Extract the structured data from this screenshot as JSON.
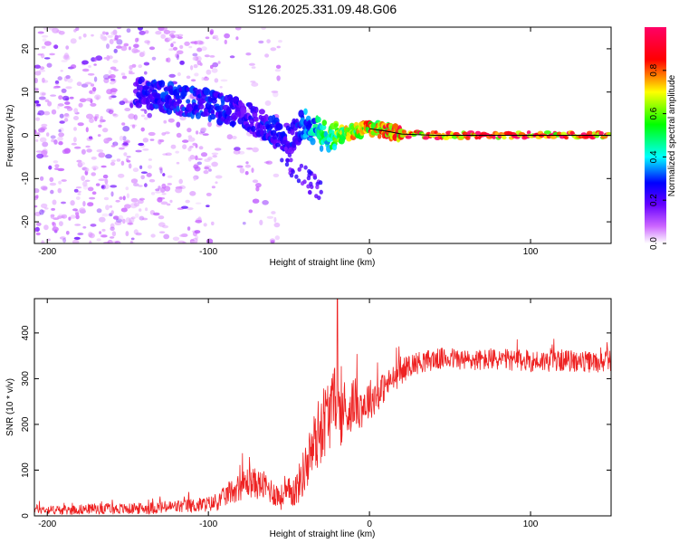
{
  "title": "S126.2025.331.09.48.G06",
  "colors": {
    "snr_line": "#ee2222",
    "ridge": "#000000",
    "colorbar": [
      "#ffffff",
      "#cc66ff",
      "#6600ff",
      "#0000ff",
      "#00ffff",
      "#00ff00",
      "#ffff00",
      "#ff0000",
      "#ff0066"
    ]
  },
  "chart_data": [
    {
      "type": "heatmap",
      "title": "S126.2025.331.09.48.G06",
      "xlabel": "Height of straight line (km)",
      "ylabel": "Frequency (Hz)",
      "xlim": [
        -208,
        150
      ],
      "ylim": [
        -25,
        25
      ],
      "xticks": [
        -200,
        -100,
        0,
        100
      ],
      "xtick_labels": [
        "-200",
        "-100",
        "0",
        "100"
      ],
      "yticks": [
        -20,
        -10,
        0,
        10,
        20
      ],
      "ytick_labels": [
        "-20",
        "-10",
        "0",
        "10",
        "20"
      ],
      "colorbar": {
        "label": "Normalized spectral amplitude",
        "range": [
          0,
          1
        ],
        "ticks": [
          0.0,
          0.2,
          0.4,
          0.6,
          0.8
        ],
        "tick_labels": [
          "0.0",
          "0.2",
          "0.4",
          "0.6",
          "0.8"
        ]
      },
      "ridge": {
        "x": [
          -145,
          -130,
          -115,
          -100,
          -90,
          -80,
          -70,
          -60,
          -50,
          -40,
          -30,
          -20,
          -10,
          0,
          10,
          20,
          40,
          60,
          80,
          100,
          120,
          150
        ],
        "frequency": [
          10,
          9,
          8,
          7,
          6,
          5,
          3,
          1,
          -1,
          3,
          0,
          0,
          1,
          1.5,
          1,
          0.3,
          0,
          0,
          0,
          0,
          0,
          0
        ],
        "amplitude": [
          0.25,
          0.3,
          0.3,
          0.3,
          0.3,
          0.25,
          0.25,
          0.3,
          0.25,
          0.35,
          0.5,
          0.65,
          0.75,
          0.8,
          0.85,
          0.9,
          0.95,
          0.95,
          0.95,
          0.95,
          0.95,
          0.95
        ]
      },
      "noise_region": {
        "x": [
          -208,
          -95
        ],
        "frequency": [
          -25,
          25
        ],
        "amplitude": 0.1
      }
    },
    {
      "type": "line",
      "xlabel": "Height of straight line (km)",
      "ylabel": "SNR (10 * v/v)",
      "xlim": [
        -208,
        150
      ],
      "ylim": [
        0,
        475
      ],
      "xticks": [
        -200,
        -100,
        0,
        100
      ],
      "xtick_labels": [
        "-200",
        "-100",
        "0",
        "100"
      ],
      "yticks": [
        0,
        100,
        200,
        300,
        400
      ],
      "ytick_labels": [
        "0",
        "100",
        "200",
        "300",
        "400"
      ],
      "series": [
        {
          "name": "SNR",
          "x": [
            -208,
            -190,
            -170,
            -150,
            -130,
            -110,
            -95,
            -85,
            -75,
            -65,
            -55,
            -45,
            -38,
            -33,
            -28,
            -24,
            -21,
            -18,
            -14,
            -10,
            -5,
            0,
            5,
            10,
            15,
            20,
            25,
            30,
            40,
            50,
            60,
            80,
            100,
            120,
            140,
            150
          ],
          "values": [
            15,
            12,
            16,
            15,
            18,
            22,
            28,
            55,
            75,
            65,
            40,
            60,
            120,
            170,
            210,
            230,
            260,
            220,
            225,
            250,
            240,
            255,
            265,
            285,
            300,
            315,
            330,
            335,
            342,
            345,
            340,
            342,
            338,
            340,
            335,
            340
          ],
          "spread": [
            10,
            10,
            12,
            12,
            14,
            16,
            18,
            28,
            35,
            32,
            28,
            40,
            60,
            75,
            85,
            80,
            70,
            70,
            60,
            55,
            50,
            45,
            40,
            32,
            30,
            28,
            26,
            25,
            24,
            24,
            24,
            24,
            24,
            24,
            24,
            24
          ]
        }
      ],
      "spike": {
        "x": -20,
        "value": 475
      }
    }
  ]
}
